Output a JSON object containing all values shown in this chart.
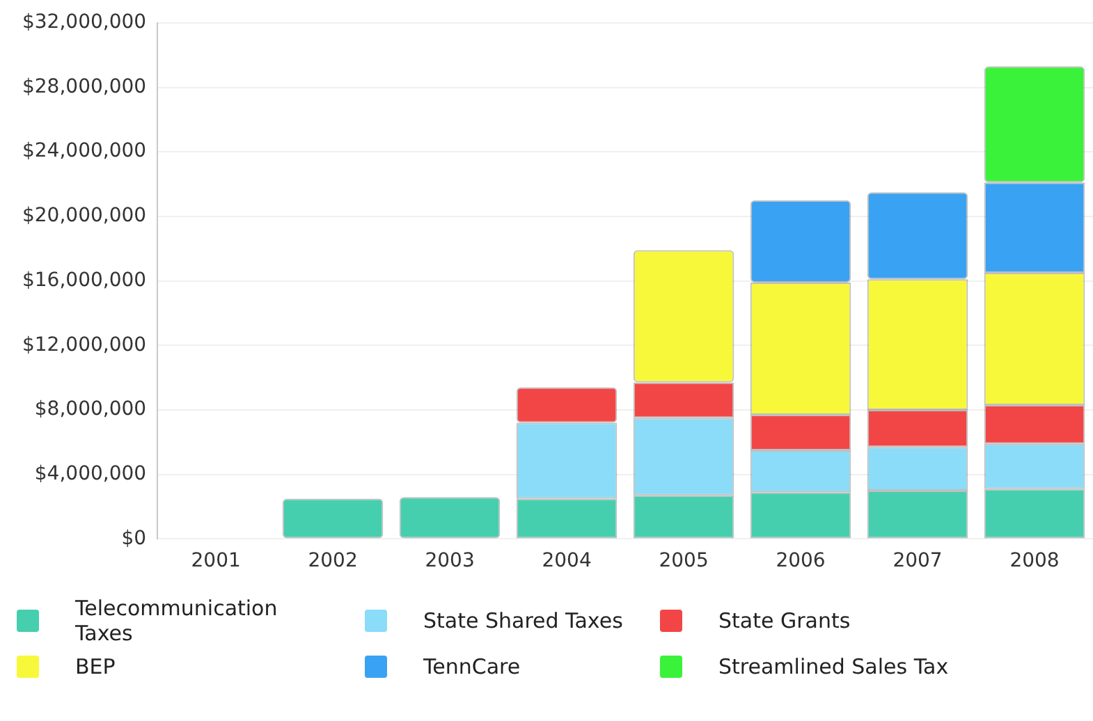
{
  "chart_data": {
    "type": "bar",
    "stacked": true,
    "categories": [
      "2001",
      "2002",
      "2003",
      "2004",
      "2005",
      "2006",
      "2007",
      "2008"
    ],
    "series": [
      {
        "name": "Telecommunication Taxes",
        "color": "#45cfae",
        "values": [
          null,
          2500000,
          2600000,
          2500000,
          2700000,
          2900000,
          3000000,
          3100000
        ]
      },
      {
        "name": "State Shared Taxes",
        "color": "#8adcf8",
        "values": [
          null,
          null,
          null,
          4700000,
          4800000,
          2600000,
          2700000,
          2800000
        ]
      },
      {
        "name": "State Grants",
        "color": "#f24646",
        "values": [
          null,
          null,
          null,
          2200000,
          2200000,
          2200000,
          2300000,
          2400000
        ]
      },
      {
        "name": "BEP",
        "color": "#f8f83a",
        "values": [
          null,
          null,
          null,
          null,
          8200000,
          8200000,
          8100000,
          8200000
        ]
      },
      {
        "name": "TennCare",
        "color": "#3aa2f2",
        "values": [
          null,
          null,
          null,
          null,
          null,
          5100000,
          5400000,
          5600000
        ]
      },
      {
        "name": "Streamlined Sales Tax",
        "color": "#3af23a",
        "values": [
          null,
          null,
          null,
          null,
          null,
          null,
          null,
          7200000
        ]
      }
    ],
    "ylim": [
      0,
      32000000
    ],
    "yticks": [
      {
        "value": 0,
        "label": "$0"
      },
      {
        "value": 4000000,
        "label": "$4,000,000"
      },
      {
        "value": 8000000,
        "label": "$8,000,000"
      },
      {
        "value": 12000000,
        "label": "$12,000,000"
      },
      {
        "value": 16000000,
        "label": "$16,000,000"
      },
      {
        "value": 20000000,
        "label": "$20,000,000"
      },
      {
        "value": 24000000,
        "label": "$24,000,000"
      },
      {
        "value": 28000000,
        "label": "$28,000,000"
      },
      {
        "value": 32000000,
        "label": "$32,000,000"
      }
    ],
    "grid": "y",
    "legend": "bottom"
  }
}
